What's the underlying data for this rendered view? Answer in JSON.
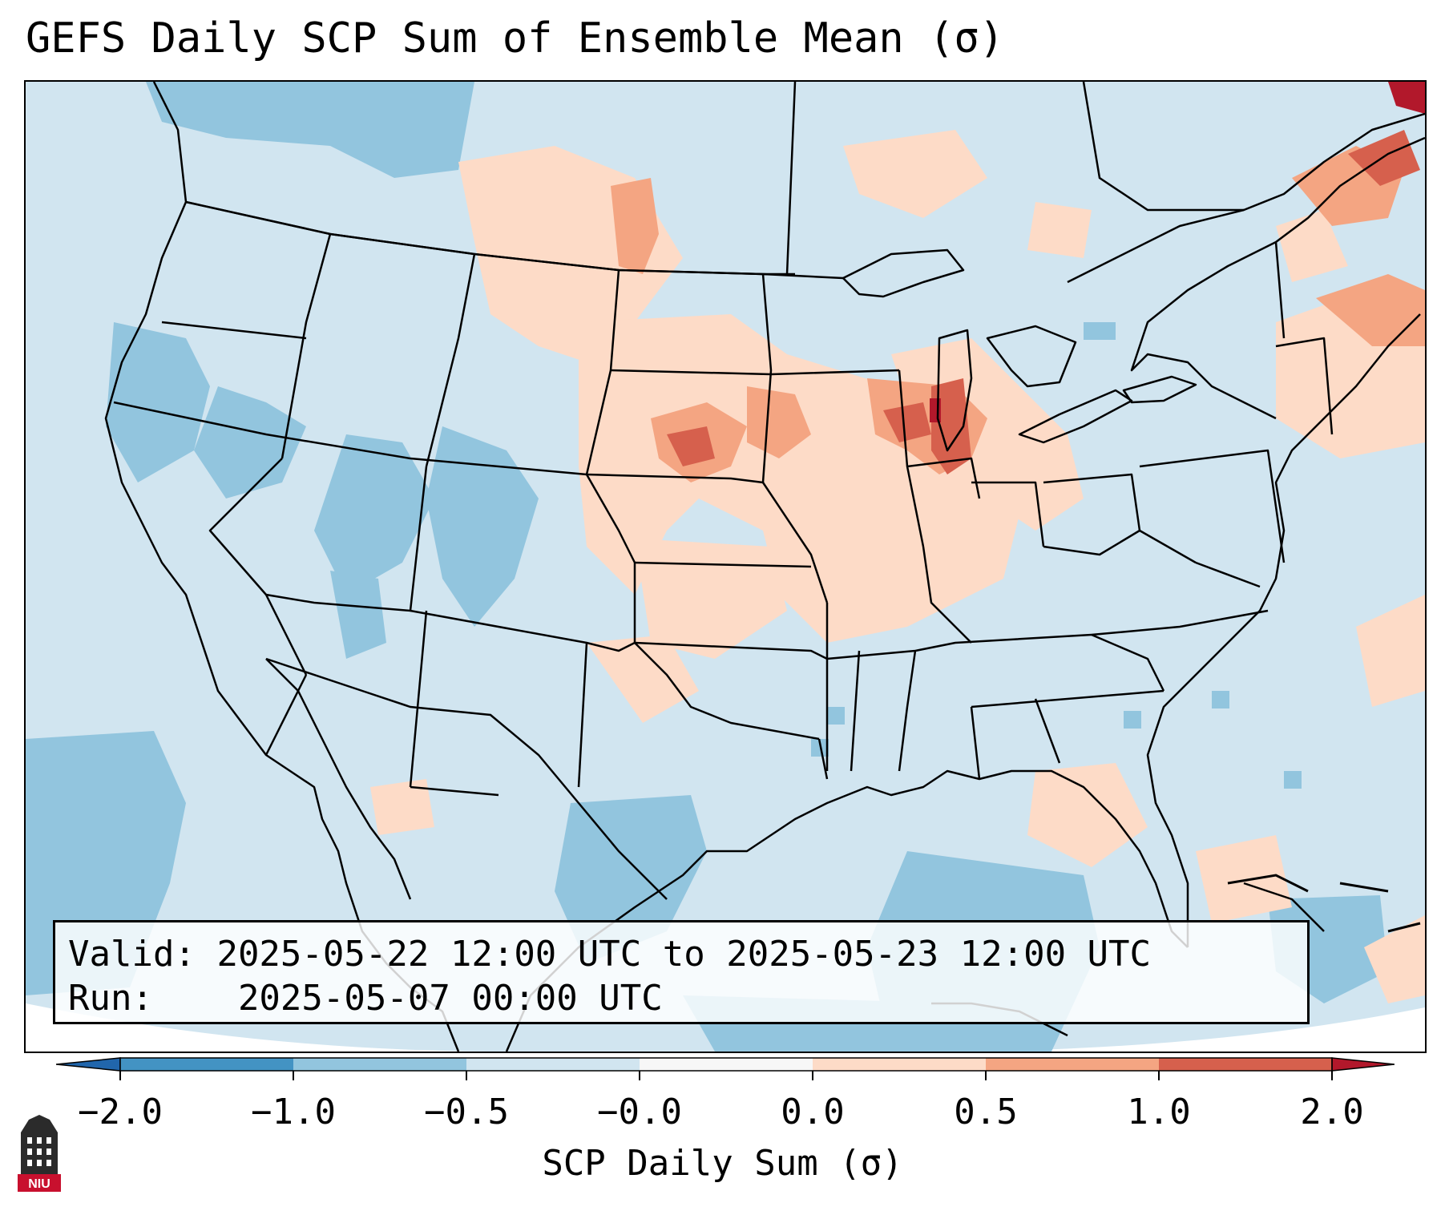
{
  "title": "GEFS Daily SCP Sum of Ensemble Mean (σ)",
  "info": {
    "valid_label": "Valid:",
    "valid_value": "2025-05-22 12:00 UTC to 2025-05-23 12:00 UTC",
    "run_label": "Run:",
    "run_value": "2025-05-07 00:00 UTC"
  },
  "colorbar": {
    "label": "SCP Daily Sum (σ)",
    "ticks": [
      "−2.0",
      "−1.0",
      "−0.5",
      "−0.0",
      "0.0",
      "0.5",
      "1.0",
      "2.0"
    ],
    "colors": [
      "#4393c3",
      "#92c5de",
      "#d1e5f0",
      "#f7f7f7",
      "#fddbc7",
      "#f4a582",
      "#d6604d"
    ],
    "extend_low": "#2166ac",
    "extend_high": "#b2182b"
  },
  "map": {
    "region": "CONUS",
    "dominant_field": "#d1e5f0",
    "features": [
      "coastlines",
      "state boundaries",
      "country borders",
      "Great Lakes"
    ]
  },
  "logo": {
    "text": "NIU",
    "colors": {
      "dark": "#2b2b2b",
      "red": "#c8102e"
    }
  }
}
